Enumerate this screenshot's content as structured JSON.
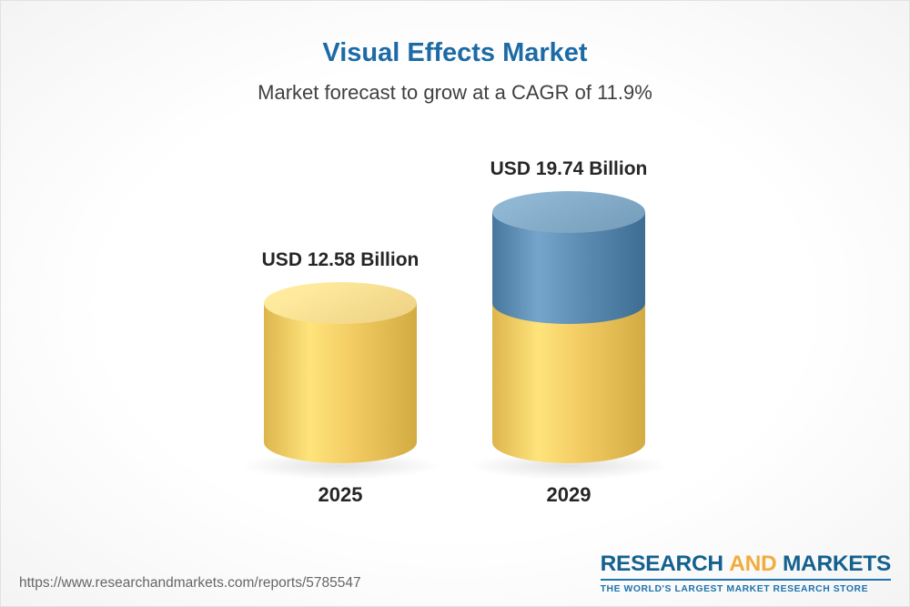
{
  "header": {
    "title": "Visual Effects Market",
    "subtitle": "Market forecast to grow at a CAGR of 11.9%"
  },
  "chart_data": {
    "type": "bar",
    "categories": [
      "2025",
      "2029"
    ],
    "values": [
      12.58,
      19.74
    ],
    "value_labels": [
      "USD 12.58 Billion",
      "USD 19.74 Billion"
    ],
    "series": [
      {
        "name": "base",
        "values": [
          12.58,
          12.58
        ]
      },
      {
        "name": "growth",
        "values": [
          0,
          7.16
        ]
      }
    ],
    "unit": "USD Billion",
    "title": "Visual Effects Market",
    "subtitle": "Market forecast to grow at a CAGR of 11.9%",
    "ylim": [
      0,
      20
    ],
    "grid": false,
    "legend": false,
    "colors": {
      "base_body": "#F3CB63",
      "base_cap": "#F6DB8E",
      "growth_body": "#5D8DB3",
      "growth_cap": "#7FA7C4"
    }
  },
  "footer": {
    "url": "https://www.researchandmarkets.com/reports/5785547",
    "logo_research": "RESEARCH",
    "logo_and": "AND",
    "logo_markets": "MARKETS",
    "logo_tagline": "THE WORLD'S LARGEST MARKET RESEARCH STORE"
  },
  "colors": {
    "title": "#1C6BA6",
    "subtitle": "#404040",
    "label": "#262626",
    "url": "#666666",
    "logo_blue": "#14618F",
    "logo_yellow": "#F1AC3D",
    "tagline_blue": "#1E73AD"
  }
}
